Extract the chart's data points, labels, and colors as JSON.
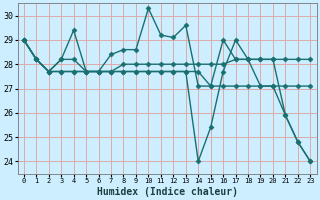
{
  "title": "",
  "xlabel": "Humidex (Indice chaleur)",
  "ylabel": "",
  "bg_color": "#cceeff",
  "grid_color": "#ddaaaa",
  "line_color": "#1a7070",
  "marker": "D",
  "markersize": 2.5,
  "linewidth": 1.0,
  "xlim": [
    -0.5,
    23.5
  ],
  "ylim": [
    23.5,
    30.5
  ],
  "xticks": [
    0,
    1,
    2,
    3,
    4,
    5,
    6,
    7,
    8,
    9,
    10,
    11,
    12,
    13,
    14,
    15,
    16,
    17,
    18,
    19,
    20,
    21,
    22,
    23
  ],
  "yticks": [
    24,
    25,
    26,
    27,
    28,
    29,
    30
  ],
  "series": [
    [
      29.0,
      28.2,
      27.7,
      28.2,
      29.4,
      27.7,
      27.7,
      28.4,
      28.6,
      28.6,
      30.3,
      29.2,
      29.1,
      29.6,
      27.1,
      27.1,
      29.0,
      28.2,
      28.2,
      27.1,
      27.1,
      25.9,
      24.8,
      24.0
    ],
    [
      29.0,
      28.2,
      27.7,
      28.2,
      28.2,
      27.7,
      27.7,
      27.7,
      28.0,
      28.0,
      28.0,
      28.0,
      28.0,
      28.0,
      28.0,
      28.0,
      28.0,
      28.2,
      28.2,
      28.2,
      28.2,
      28.2,
      28.2,
      28.2
    ],
    [
      29.0,
      28.2,
      27.7,
      27.7,
      27.7,
      27.7,
      27.7,
      27.7,
      27.7,
      27.7,
      27.7,
      27.7,
      27.7,
      27.7,
      27.7,
      27.1,
      27.1,
      27.1,
      27.1,
      27.1,
      27.1,
      27.1,
      27.1,
      27.1
    ],
    [
      29.0,
      28.2,
      27.7,
      27.7,
      27.7,
      27.7,
      27.7,
      27.7,
      27.7,
      27.7,
      27.7,
      27.7,
      27.7,
      27.7,
      24.0,
      25.4,
      27.7,
      29.0,
      28.2,
      28.2,
      28.2,
      25.9,
      24.8,
      24.0
    ]
  ]
}
